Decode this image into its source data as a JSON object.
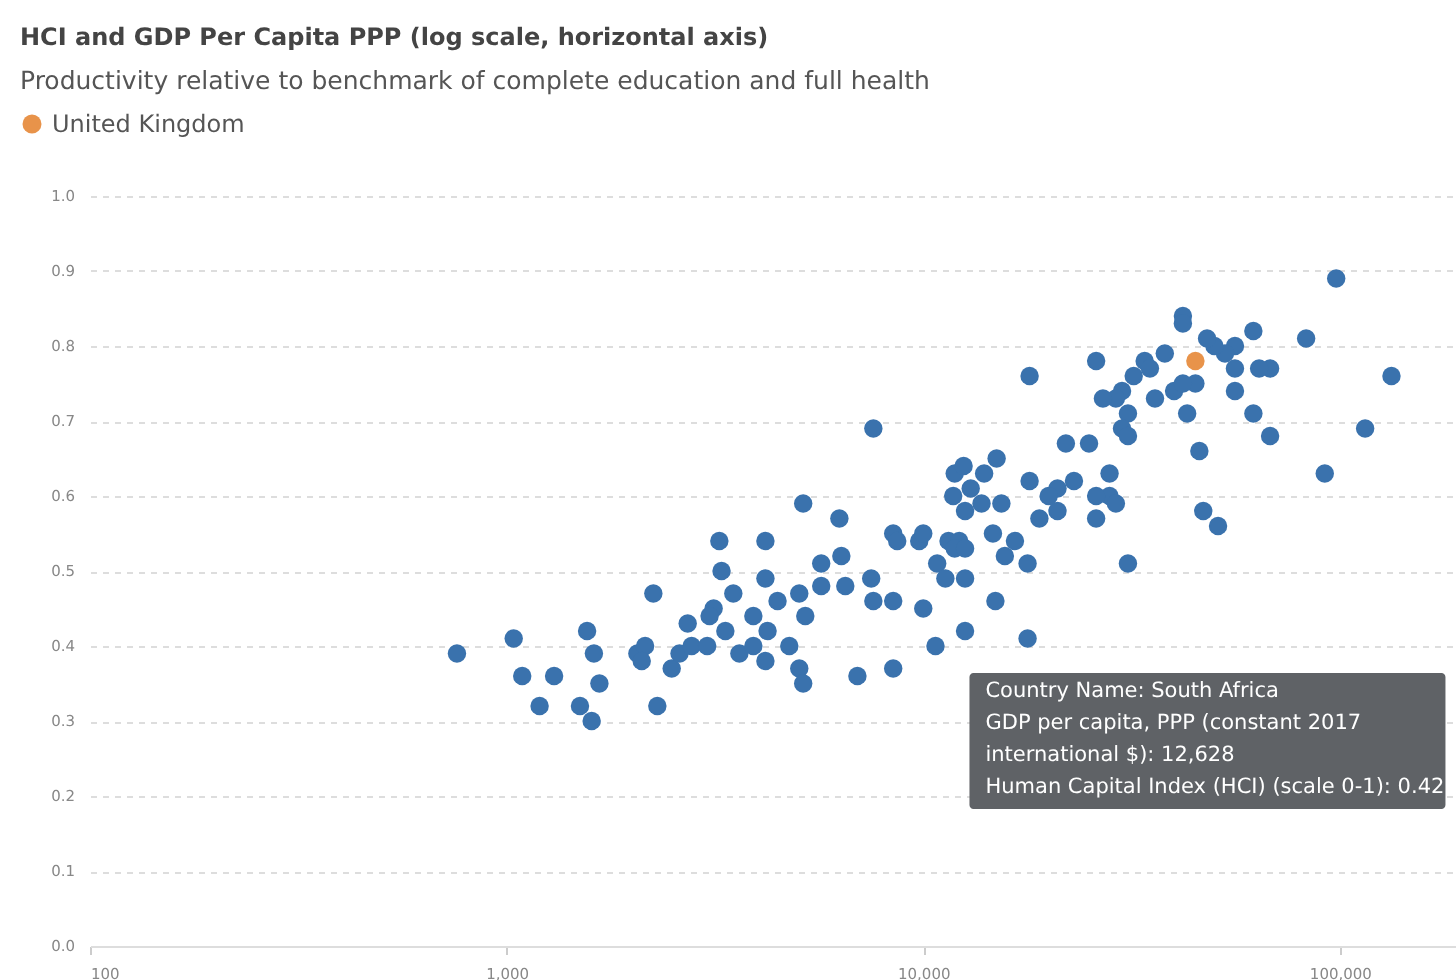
{
  "chart_data": {
    "type": "scatter",
    "title": "HCI and GDP Per Capita PPP (log scale, horizontal axis)",
    "subtitle": "Productivity relative to benchmark of complete education and full health",
    "log": "x",
    "grid": "y",
    "legend": "top left",
    "marker": "circle",
    "xlim": [
      100,
      190000
    ],
    "xticks": [
      100,
      {
        "value": 1000,
        "label": "1,000"
      },
      {
        "value": 10000,
        "label": "10,000"
      },
      {
        "value": 100000,
        "label": "100,000"
      }
    ],
    "ylim": [
      0,
      1
    ],
    "yticks": [
      {
        "value": 0,
        "label": "0.0"
      },
      0.1,
      0.2,
      0.3,
      0.4,
      0.5,
      0.6,
      0.7,
      0.8,
      0.9,
      {
        "value": 1,
        "label": "1.0"
      }
    ],
    "series": [
      {
        "color": "#3a72ad",
        "x": [
          760,
          1040,
          1090,
          1300,
          1200,
          1500,
          1600,
          1560,
          1620,
          1670,
          2060,
          2150,
          2110,
          2300,
          2250,
          2490,
          2600,
          2720,
          2780,
          3030,
          3140,
          3070,
          3240,
          3280,
          3350,
          3500,
          3620,
          3910,
          3910,
          4180,
          4180,
          4180,
          4230,
          4470,
          4770,
          5040,
          5040,
          5150,
          5210,
          5150,
          5690,
          5690,
          6290,
          6360,
          6500,
          6950,
          7500,
          7590,
          7590,
          8470,
          8470,
          8470,
          8660,
          9780,
          10000,
          10000,
          10700,
          10800,
          11300,
          11500,
          11800,
          11900,
          12600,
          14900,
          17800,
          98000,
          133000,
          115000,
          92000,
          83000,
          68000,
          62000,
          62000,
          56000,
          68000,
          64000,
          56000,
          56000,
          53000,
          50000,
          48000,
          45000,
          47000,
          51000,
          46000,
          43000,
          42000,
          42000,
          40000,
          42000,
          38000,
          36000,
          34000,
          35000,
          32000,
          30000,
          29000,
          27000,
          26000,
          31000,
          30000,
          31000,
          25000,
          22000,
          18000,
          28000,
          28000,
          29000,
          26000,
          26000,
          23000,
          21000,
          20000,
          21000,
          18000,
          19000,
          31000,
          15000,
          14000,
          12500,
          13000,
          12600,
          13800,
          15400,
          14700,
          12200,
          11900,
          12600,
          16600,
          15700,
          17800,
          12600
        ],
        "values": [
          0.39,
          0.41,
          0.36,
          0.36,
          0.32,
          0.32,
          0.3,
          0.42,
          0.39,
          0.35,
          0.39,
          0.4,
          0.38,
          0.32,
          0.47,
          0.37,
          0.39,
          0.43,
          0.4,
          0.4,
          0.45,
          0.44,
          0.54,
          0.5,
          0.42,
          0.47,
          0.39,
          0.44,
          0.4,
          0.54,
          0.49,
          0.38,
          0.42,
          0.46,
          0.4,
          0.47,
          0.37,
          0.35,
          0.44,
          0.59,
          0.48,
          0.51,
          0.57,
          0.52,
          0.48,
          0.36,
          0.49,
          0.46,
          0.69,
          0.46,
          0.37,
          0.55,
          0.54,
          0.54,
          0.55,
          0.45,
          0.4,
          0.51,
          0.49,
          0.54,
          0.6,
          0.63,
          0.42,
          0.46,
          0.41,
          0.89,
          0.76,
          0.69,
          0.63,
          0.81,
          0.68,
          0.71,
          0.82,
          0.8,
          0.77,
          0.77,
          0.77,
          0.74,
          0.79,
          0.8,
          0.81,
          0.75,
          0.58,
          0.56,
          0.66,
          0.71,
          0.84,
          0.83,
          0.74,
          0.75,
          0.79,
          0.73,
          0.78,
          0.77,
          0.76,
          0.74,
          0.73,
          0.73,
          0.78,
          0.71,
          0.69,
          0.68,
          0.67,
          0.67,
          0.76,
          0.63,
          0.6,
          0.59,
          0.6,
          0.57,
          0.62,
          0.61,
          0.6,
          0.58,
          0.62,
          0.57,
          0.51,
          0.65,
          0.63,
          0.64,
          0.61,
          0.58,
          0.59,
          0.59,
          0.55,
          0.54,
          0.53,
          0.53,
          0.54,
          0.52,
          0.51,
          0.49
        ]
      },
      {
        "name": "United Kingdom",
        "color": "#e8934a",
        "x": [
          45000
        ],
        "values": [
          0.78
        ]
      }
    ],
    "annotations": [
      {
        "text": "Country Name: South Africa\nGDP per capita, PPP (constant 2017\ninternational $): 12,628\nHuman Capital Index (HCI) (scale 0-1): 0.42",
        "x": 12628,
        "y": 0.42
      }
    ]
  }
}
